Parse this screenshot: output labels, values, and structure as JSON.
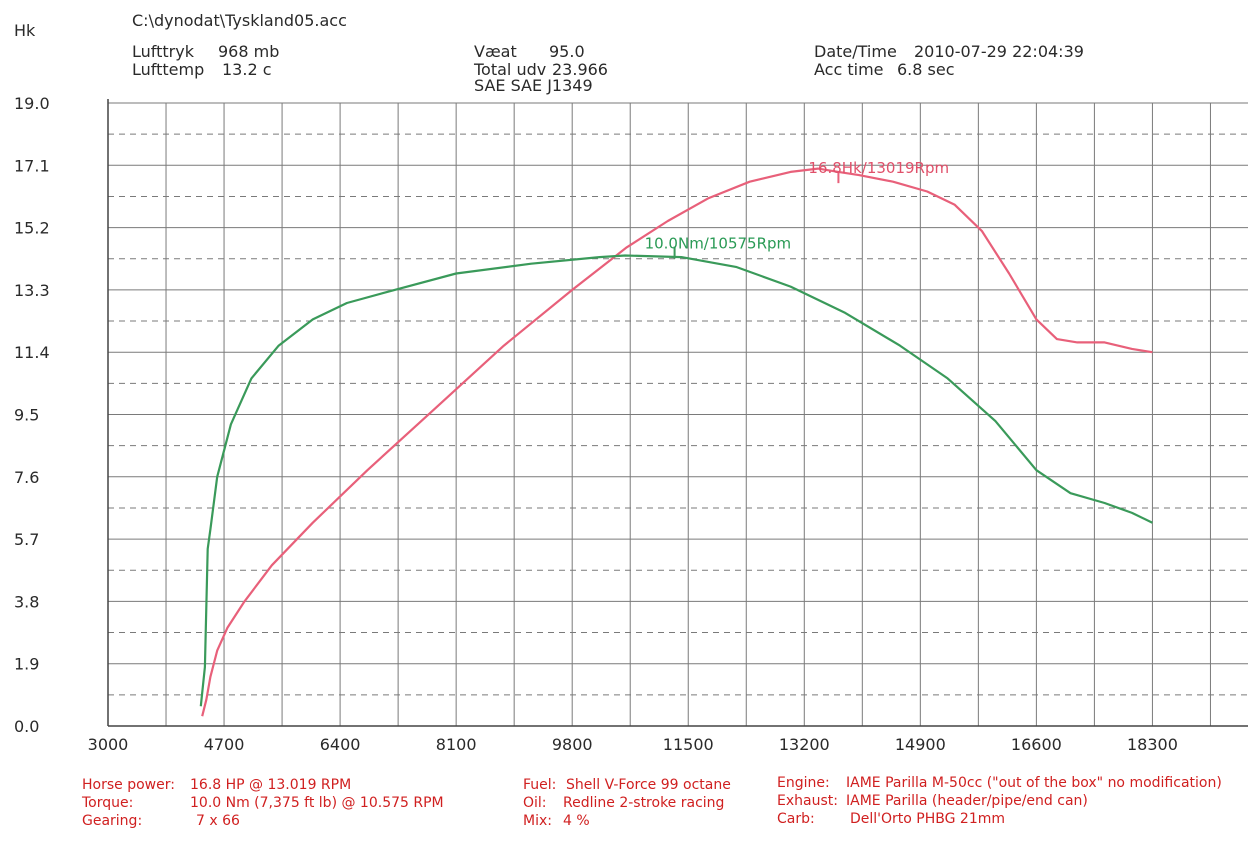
{
  "header": {
    "file_path": "C:\\dynodat\\Tyskland05.acc",
    "lufttryk_label": "Lufttryk",
    "lufttryk_value": "968 mb",
    "lufttemp_label": "Lufttemp",
    "lufttemp_value": "13.2 c",
    "vaeat_label": "Væat",
    "vaeat_value": "95.0",
    "total_label": "Total udv",
    "total_value": "23.966",
    "sae_label": "SAE SAE J1349",
    "datetime_label": "Date/Time",
    "datetime_value": "2010-07-29 22:04:39",
    "acc_label": "Acc time",
    "acc_value": "6.8 sec"
  },
  "footer": {
    "hp_label": "Horse power:",
    "hp_value": "16.8 HP @ 13.019 RPM",
    "torque_label": "Torque:",
    "torque_value": "10.0 Nm (7,375 ft lb) @ 10.575 RPM",
    "gearing_label": "Gearing:",
    "gearing_value": "7 x 66",
    "fuel_label": "Fuel:",
    "fuel_value": "Shell V-Force 99 octane",
    "oil_label": "Oil:",
    "oil_value": "Redline 2-stroke racing",
    "mix_label": "Mix:",
    "mix_value": "4 %",
    "engine_label": "Engine:",
    "engine_value": "IAME Parilla M-50cc (\"out of the box\" no modification)",
    "exhaust_label": "Exhaust:",
    "exhaust_value": "IAME Parilla (header/pipe/end can)",
    "carb_label": "Carb:",
    "carb_value": "Dell'Orto PHBG 21mm"
  },
  "colors": {
    "hp_line": "#e8607a",
    "torque_line": "#3a9a5a",
    "grid": "#7a7a7a",
    "footer_text": "#d02020"
  },
  "chart_data": {
    "type": "line",
    "ylabel": "Hk",
    "xlabel": "",
    "x_ticks": [
      "3000",
      "4700",
      "6400",
      "8100",
      "9800",
      "11500",
      "13200",
      "14900",
      "16600",
      "18300"
    ],
    "y_ticks": [
      "0.0",
      "1.9",
      "3.8",
      "5.7",
      "7.6",
      "9.5",
      "11.4",
      "13.3",
      "15.2",
      "17.1",
      "19.0"
    ],
    "xlim": [
      3000,
      19700
    ],
    "ylim": [
      0,
      19.0
    ],
    "grid": true,
    "annotations": [
      {
        "text": "16.8Hk/13019Rpm",
        "series": "hp",
        "x": 13700,
        "y": 16.8
      },
      {
        "text": "10.0Nm/10575Rpm",
        "series": "torque",
        "x": 11300,
        "y": 14.5
      }
    ],
    "series": [
      {
        "key": "hp",
        "color": "#e8607a",
        "x": [
          4380,
          4440,
          4500,
          4600,
          4750,
          5000,
          5400,
          6000,
          6800,
          7800,
          8800,
          9800,
          10600,
          11200,
          11800,
          12400,
          13000,
          13400,
          13700,
          14000,
          14500,
          15000,
          15400,
          15800,
          16200,
          16600,
          16900,
          17200,
          17600,
          18000,
          18300
        ],
        "y": [
          0.3,
          0.8,
          1.5,
          2.3,
          3.0,
          3.8,
          4.9,
          6.2,
          7.8,
          9.7,
          11.6,
          13.3,
          14.6,
          15.4,
          16.1,
          16.6,
          16.9,
          17.0,
          16.9,
          16.8,
          16.6,
          16.3,
          15.9,
          15.1,
          13.8,
          12.4,
          11.8,
          11.7,
          11.7,
          11.5,
          11.4
        ]
      },
      {
        "key": "torque",
        "color": "#3a9a5a",
        "x": [
          4360,
          4420,
          4460,
          4500,
          4600,
          4800,
          5100,
          5500,
          6000,
          6500,
          7200,
          8100,
          9200,
          10200,
          10575,
          11400,
          12200,
          13000,
          13800,
          14600,
          15300,
          16000,
          16600,
          17100,
          17600,
          18000,
          18300
        ],
        "y": [
          0.6,
          1.8,
          5.4,
          6.0,
          7.6,
          9.2,
          10.6,
          11.6,
          12.4,
          12.9,
          13.3,
          13.8,
          14.1,
          14.3,
          14.35,
          14.3,
          14.0,
          13.4,
          12.6,
          11.6,
          10.6,
          9.3,
          7.8,
          7.1,
          6.8,
          6.5,
          6.2
        ]
      }
    ]
  }
}
